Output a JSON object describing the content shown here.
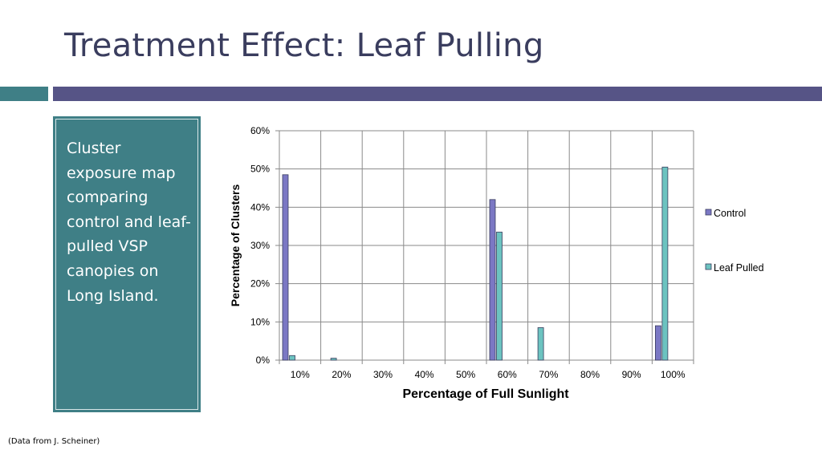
{
  "slide": {
    "title": "Treatment Effect: Leaf Pulling",
    "description": "Cluster exposure map comparing control and leaf-pulled VSP canopies on Long Island.",
    "footnote": "(Data from J. Scheiner)"
  },
  "colors": {
    "title": "#3a3d5e",
    "accent_teal": "#3f7f86",
    "accent_purple": "#565486",
    "control": "#7b78c4",
    "leaf_pulled": "#6cc3c0"
  },
  "chart_data": {
    "type": "bar",
    "categories": [
      "10%",
      "20%",
      "30%",
      "40%",
      "50%",
      "60%",
      "70%",
      "80%",
      "90%",
      "100%"
    ],
    "series": [
      {
        "name": "Control",
        "values": [
          48.5,
          0,
          0,
          0,
          0,
          42,
          0,
          0,
          0,
          9
        ]
      },
      {
        "name": "Leaf Pulled",
        "values": [
          1.2,
          0.5,
          0,
          0,
          0,
          33.5,
          8.5,
          0,
          0,
          50.5
        ]
      }
    ],
    "xlabel": "Percentage of Full Sunlight",
    "ylabel": "Percentage of Clusters",
    "ylim": [
      0,
      60
    ],
    "yticks": [
      "0%",
      "10%",
      "20%",
      "30%",
      "40%",
      "50%",
      "60%"
    ],
    "grid": true,
    "legend": "right"
  }
}
